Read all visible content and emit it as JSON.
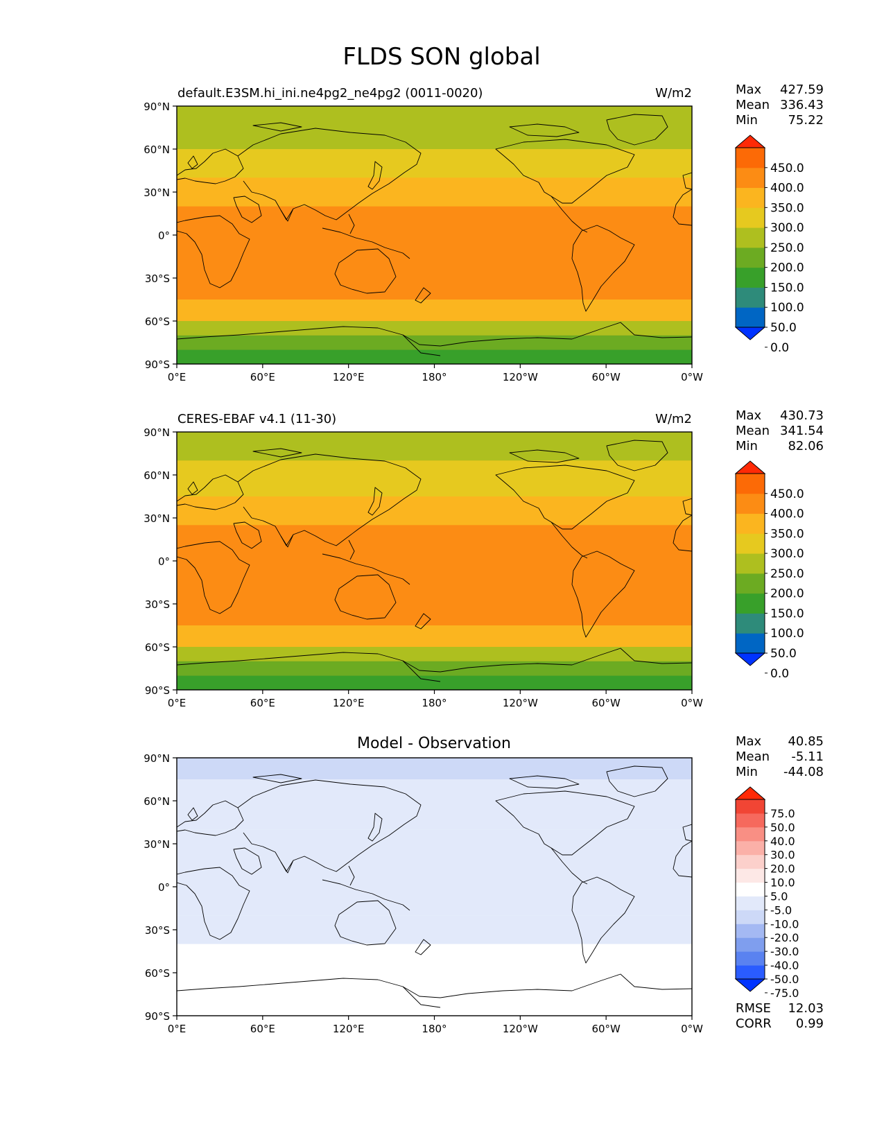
{
  "figure": {
    "title": "FLDS SON global"
  },
  "axes": {
    "lat_ticks": [
      "90°N",
      "60°N",
      "30°N",
      "0°",
      "30°S",
      "60°S",
      "90°S"
    ],
    "lon_ticks": [
      "0°E",
      "60°E",
      "120°E",
      "180°",
      "120°W",
      "60°W",
      "0°W"
    ]
  },
  "colors": {
    "abs_scale": [
      "#0033ff",
      "#0066c4",
      "#2e8b7a",
      "#38a02a",
      "#6cab22",
      "#aebf1f",
      "#e6c91f",
      "#fbb51f",
      "#fc8c14",
      "#fc6a06",
      "#ff2a06"
    ],
    "diff_scale": [
      "#0033ff",
      "#2a5cff",
      "#5a82f0",
      "#7f9eee",
      "#a4b9f3",
      "#cdd9f7",
      "#e2e9fa",
      "#ffffff",
      "#fde8e6",
      "#fcd0cb",
      "#fbb0a8",
      "#f98f84",
      "#f6695d",
      "#f14534",
      "#ff2a06"
    ],
    "coastline": "#000000"
  },
  "chart_data": [
    {
      "type": "heatmap",
      "title": "default.E3SM.hi_ini.ne4pg2_ne4pg2 (0011-0020)",
      "units": "W/m2",
      "stats": {
        "max_label": "Max",
        "max": "427.59",
        "mean_label": "Mean",
        "mean": "336.43",
        "min_label": "Min",
        "min": "75.22"
      },
      "levels": [
        0.0,
        50.0,
        100.0,
        150.0,
        200.0,
        250.0,
        300.0,
        350.0,
        400.0,
        450.0
      ],
      "level_labels": [
        "450.0",
        "400.0",
        "350.0",
        "300.0",
        "250.0",
        "200.0",
        "150.0",
        "100.0",
        "50.0",
        "0.0"
      ],
      "bands": [
        {
          "lat_top": 90,
          "lat_bottom": 60,
          "value": 240
        },
        {
          "lat_top": 60,
          "lat_bottom": 40,
          "value": 290
        },
        {
          "lat_top": 40,
          "lat_bottom": 20,
          "value": 340
        },
        {
          "lat_top": 20,
          "lat_bottom": -15,
          "value": 390
        },
        {
          "lat_top": -15,
          "lat_bottom": -45,
          "value": 350
        },
        {
          "lat_top": -45,
          "lat_bottom": -60,
          "value": 300
        },
        {
          "lat_top": -60,
          "lat_bottom": -70,
          "value": 230
        },
        {
          "lat_top": -70,
          "lat_bottom": -80,
          "value": 170
        },
        {
          "lat_top": -80,
          "lat_bottom": -90,
          "value": 120
        }
      ]
    },
    {
      "type": "heatmap",
      "title": "CERES-EBAF v4.1 (11-30)",
      "units": "W/m2",
      "stats": {
        "max_label": "Max",
        "max": "430.73",
        "mean_label": "Mean",
        "mean": "341.54",
        "min_label": "Min",
        "min": "82.06"
      },
      "levels": [
        0.0,
        50.0,
        100.0,
        150.0,
        200.0,
        250.0,
        300.0,
        350.0,
        400.0,
        450.0
      ],
      "level_labels": [
        "450.0",
        "400.0",
        "350.0",
        "300.0",
        "250.0",
        "200.0",
        "150.0",
        "100.0",
        "50.0",
        "0.0"
      ],
      "bands": [
        {
          "lat_top": 90,
          "lat_bottom": 70,
          "value": 240
        },
        {
          "lat_top": 70,
          "lat_bottom": 45,
          "value": 290
        },
        {
          "lat_top": 45,
          "lat_bottom": 25,
          "value": 340
        },
        {
          "lat_top": 25,
          "lat_bottom": -15,
          "value": 395
        },
        {
          "lat_top": -15,
          "lat_bottom": -45,
          "value": 350
        },
        {
          "lat_top": -45,
          "lat_bottom": -60,
          "value": 300
        },
        {
          "lat_top": -60,
          "lat_bottom": -70,
          "value": 230
        },
        {
          "lat_top": -70,
          "lat_bottom": -80,
          "value": 170
        },
        {
          "lat_top": -80,
          "lat_bottom": -90,
          "value": 120
        }
      ]
    },
    {
      "type": "heatmap",
      "title": "Model - Observation",
      "units": "",
      "stats": {
        "max_label": "Max",
        "max": "40.85",
        "mean_label": "Mean",
        "mean": "-5.11",
        "min_label": "Min",
        "min": "-44.08"
      },
      "levels": [
        -75.0,
        -50.0,
        -40.0,
        -30.0,
        -20.0,
        -10.0,
        -5.0,
        5.0,
        10.0,
        20.0,
        30.0,
        40.0,
        50.0,
        75.0
      ],
      "level_labels": [
        "75.0",
        "50.0",
        "40.0",
        "30.0",
        "20.0",
        "10.0",
        "5.0",
        "-5.0",
        "-10.0",
        "-20.0",
        "-30.0",
        "-40.0",
        "-50.0",
        "-75.0"
      ],
      "bands": [
        {
          "lat_top": 90,
          "lat_bottom": 75,
          "value": -12
        },
        {
          "lat_top": 75,
          "lat_bottom": 40,
          "value": -8
        },
        {
          "lat_top": 40,
          "lat_bottom": -20,
          "value": -6
        },
        {
          "lat_top": -20,
          "lat_bottom": -40,
          "value": -8
        },
        {
          "lat_top": -40,
          "lat_bottom": -90,
          "value": 0
        }
      ],
      "metrics": {
        "rmse_label": "RMSE",
        "rmse": "12.03",
        "corr_label": "CORR",
        "corr": "0.99"
      }
    }
  ]
}
